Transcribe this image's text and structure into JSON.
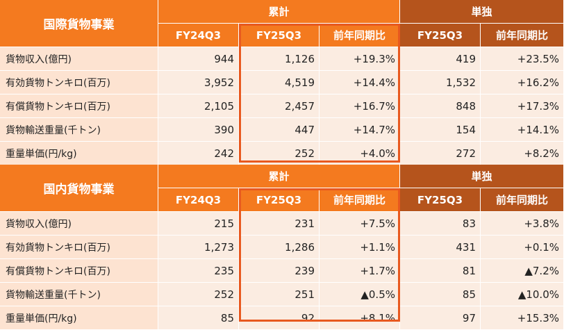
{
  "tables": [
    {
      "title": "国際貨物事業",
      "group_cumulative": "累計",
      "group_standalone": "単独",
      "columns": [
        "FY24Q3",
        "FY25Q3",
        "前年同期比",
        "FY25Q3",
        "前年同期比"
      ],
      "rows": [
        {
          "label": "貨物収入(億円)",
          "values": [
            "944",
            "1,126",
            "+19.3%",
            "419",
            "+23.5%"
          ]
        },
        {
          "label": "有効貨物トンキロ(百万)",
          "values": [
            "3,952",
            "4,519",
            "+14.4%",
            "1,532",
            "+16.2%"
          ]
        },
        {
          "label": "有償貨物トンキロ(百万)",
          "values": [
            "2,105",
            "2,457",
            "+16.7%",
            "848",
            "+17.3%"
          ]
        },
        {
          "label": "貨物輸送重量(千トン)",
          "values": [
            "390",
            "447",
            "+14.7%",
            "154",
            "+14.1%"
          ]
        },
        {
          "label": "重量単価(円/kg)",
          "values": [
            "242",
            "252",
            "+4.0%",
            "272",
            "+8.2%"
          ]
        }
      ]
    },
    {
      "title": "国内貨物事業",
      "group_cumulative": "累計",
      "group_standalone": "単独",
      "columns": [
        "FY24Q3",
        "FY25Q3",
        "前年同期比",
        "FY25Q3",
        "前年同期比"
      ],
      "rows": [
        {
          "label": "貨物収入(億円)",
          "values": [
            "215",
            "231",
            "+7.5%",
            "83",
            "+3.8%"
          ]
        },
        {
          "label": "有効貨物トンキロ(百万)",
          "values": [
            "1,273",
            "1,286",
            "+1.1%",
            "431",
            "+0.1%"
          ]
        },
        {
          "label": "有償貨物トンキロ(百万)",
          "values": [
            "235",
            "239",
            "+1.7%",
            "81",
            "▲7.2%"
          ]
        },
        {
          "label": "貨物輸送重量(千トン)",
          "values": [
            "252",
            "251",
            "▲0.5%",
            "85",
            "▲10.0%"
          ]
        },
        {
          "label": "重量単価(円/kg)",
          "values": [
            "85",
            "92",
            "+8.1%",
            "97",
            "+15.3%"
          ]
        }
      ]
    }
  ],
  "colors": {
    "header_orange": "#f47a1f",
    "header_brown": "#b5541c",
    "label_bg": "#fde3d1",
    "cell_bg": "#fbece1",
    "highlight_border": "#e8591f"
  }
}
